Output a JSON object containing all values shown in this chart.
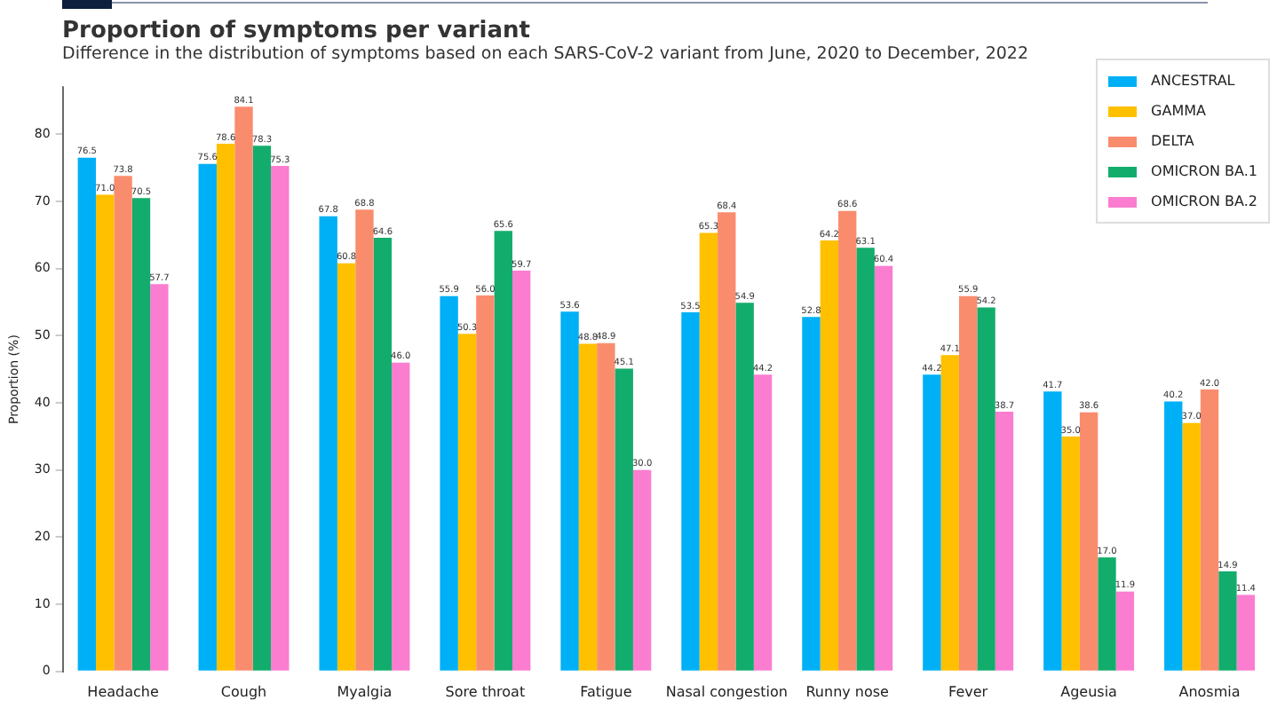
{
  "chart_data": {
    "type": "bar",
    "title": "Proportion of symptoms per variant",
    "subtitle": "Difference in the distribution of symptoms based on each SARS-CoV-2 variant from June, 2020 to December, 2022",
    "ylabel": "Proportion (%)",
    "categories": [
      "Headache",
      "Cough",
      "Myalgia",
      "Sore throat",
      "Fatigue",
      "Nasal congestion",
      "Runny nose",
      "Fever",
      "Ageusia",
      "Anosmia"
    ],
    "series": [
      {
        "name": "ANCESTRAL",
        "color": "#00b0f6",
        "values": [
          76.5,
          75.6,
          67.8,
          55.9,
          53.6,
          53.5,
          52.8,
          44.2,
          41.7,
          40.2
        ],
        "value_labels": [
          "76.5",
          "75.6",
          "67.8",
          "55.9",
          "53.6",
          "53.5",
          "52.8",
          "44.2",
          "41.7",
          "40.2"
        ]
      },
      {
        "name": "GAMMA",
        "color": "#ffc000",
        "values": [
          71.0,
          78.6,
          60.8,
          50.3,
          48.8,
          65.3,
          64.2,
          47.1,
          35.0,
          37.0
        ],
        "value_labels": [
          "71.0",
          "78.6",
          "60.8",
          "50.3",
          "48.8",
          "65.3",
          "64.2",
          "47.1",
          "35.0",
          "37.0"
        ]
      },
      {
        "name": "DELTA",
        "color": "#fa8c6e",
        "values": [
          73.8,
          84.1,
          68.8,
          56.0,
          48.9,
          68.4,
          68.6,
          55.9,
          38.6,
          42.0
        ],
        "value_labels": [
          "73.8",
          "84.1",
          "68.8",
          "56.0",
          "48.9",
          "68.4",
          "68.6",
          "55.9",
          "38.6",
          "42.0"
        ]
      },
      {
        "name": "OMICRON BA.1",
        "color": "#12ad6c",
        "values": [
          70.5,
          78.3,
          64.6,
          65.6,
          45.1,
          54.9,
          63.1,
          54.2,
          17.0,
          14.9
        ],
        "value_labels": [
          "70.5",
          "78.3",
          "64.6",
          "65.6",
          "45.1",
          "54.9",
          "63.1",
          "54.2",
          "17.0",
          "14.9"
        ]
      },
      {
        "name": "OMICRON BA.2",
        "color": "#fb7dd0",
        "values": [
          57.7,
          75.3,
          46.0,
          59.7,
          30.0,
          44.2,
          60.4,
          38.7,
          11.9,
          11.4
        ],
        "value_labels": [
          "57.7",
          "75.3",
          "46.0",
          "59.7",
          "30.0",
          "44.2",
          "60.4",
          "38.7",
          "11.9",
          "11.4"
        ]
      }
    ],
    "ylim": [
      0,
      87
    ],
    "yticks": [
      0,
      10,
      20,
      30,
      40,
      50,
      60,
      70,
      80
    ],
    "grid": false,
    "legend": "top right"
  }
}
